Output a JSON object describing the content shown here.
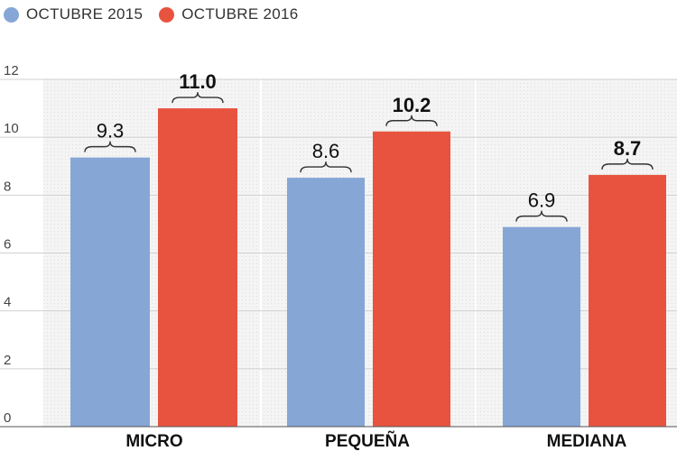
{
  "chart_data": {
    "type": "bar",
    "categories": [
      "MICRO",
      "PEQUEÑA",
      "MEDIANA"
    ],
    "series": [
      {
        "name": "OCTUBRE 2015",
        "values": [
          9.3,
          8.6,
          6.9
        ],
        "labels": [
          "9.3",
          "8.6",
          "6.9"
        ],
        "color": "#86a6d6"
      },
      {
        "name": "OCTUBRE 2016",
        "values": [
          11.0,
          10.2,
          8.7
        ],
        "labels": [
          "11.0",
          "10.2",
          "8.7"
        ],
        "color": "#e8533f"
      }
    ],
    "yticks": [
      "0",
      "2",
      "4",
      "6",
      "8",
      "10",
      "12"
    ],
    "ylim": [
      0,
      12
    ],
    "grid": true,
    "legend_position": "top-left"
  }
}
